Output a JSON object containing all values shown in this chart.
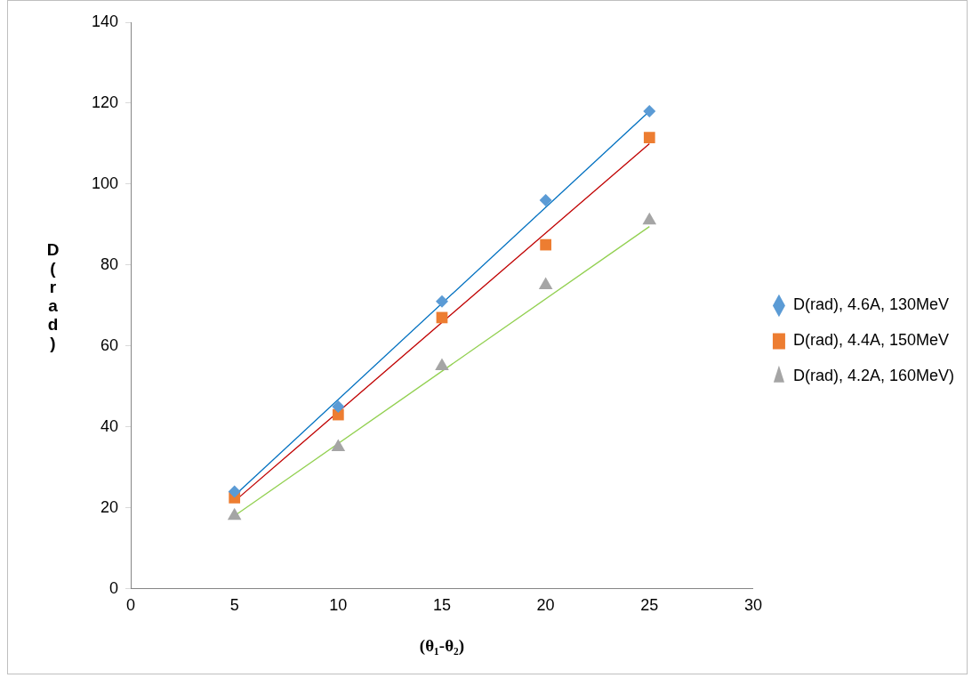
{
  "chart_data": {
    "type": "scatter",
    "xlabel": "(θ₁-θ₂)",
    "ylabel": "D(rad)",
    "xlim": [
      0,
      30
    ],
    "xticks": [
      0,
      5,
      10,
      15,
      20,
      25,
      30
    ],
    "ylim": [
      0,
      140
    ],
    "yticks": [
      0,
      20,
      40,
      60,
      80,
      100,
      120,
      140
    ],
    "legend": "right",
    "series": [
      {
        "name": "D(rad), 4.6A, 130MeV",
        "color": "#5b9bd5",
        "marker": "diamond",
        "x": [
          5,
          10,
          15,
          20,
          25
        ],
        "values": [
          24,
          45,
          71,
          96,
          118
        ]
      },
      {
        "name": "D(rad), 4.4A, 150MeV",
        "color": "#ed7d31",
        "marker": "square",
        "x": [
          5,
          10,
          15,
          20,
          25
        ],
        "values": [
          22.5,
          43,
          67,
          85,
          111.5
        ]
      },
      {
        "name": "D(rad), 4.2A, 160MeV)",
        "color": "#a5a5a5",
        "marker": "triangle",
        "x": [
          5,
          10,
          15,
          20,
          25
        ],
        "values": [
          18,
          35,
          55,
          75,
          91
        ]
      },
      {
        "type": "line",
        "color": "#0070c0",
        "marker": "none",
        "line_style": "solid",
        "x": [
          5,
          25
        ],
        "values": [
          23,
          118
        ]
      },
      {
        "type": "line",
        "color": "#c00000",
        "marker": "none",
        "line_style": "solid",
        "x": [
          5,
          25
        ],
        "values": [
          21.6,
          110
        ]
      },
      {
        "type": "line",
        "color": "#92d050",
        "marker": "none",
        "line_style": "solid",
        "x": [
          5,
          25
        ],
        "values": [
          18,
          89.5
        ]
      }
    ]
  }
}
